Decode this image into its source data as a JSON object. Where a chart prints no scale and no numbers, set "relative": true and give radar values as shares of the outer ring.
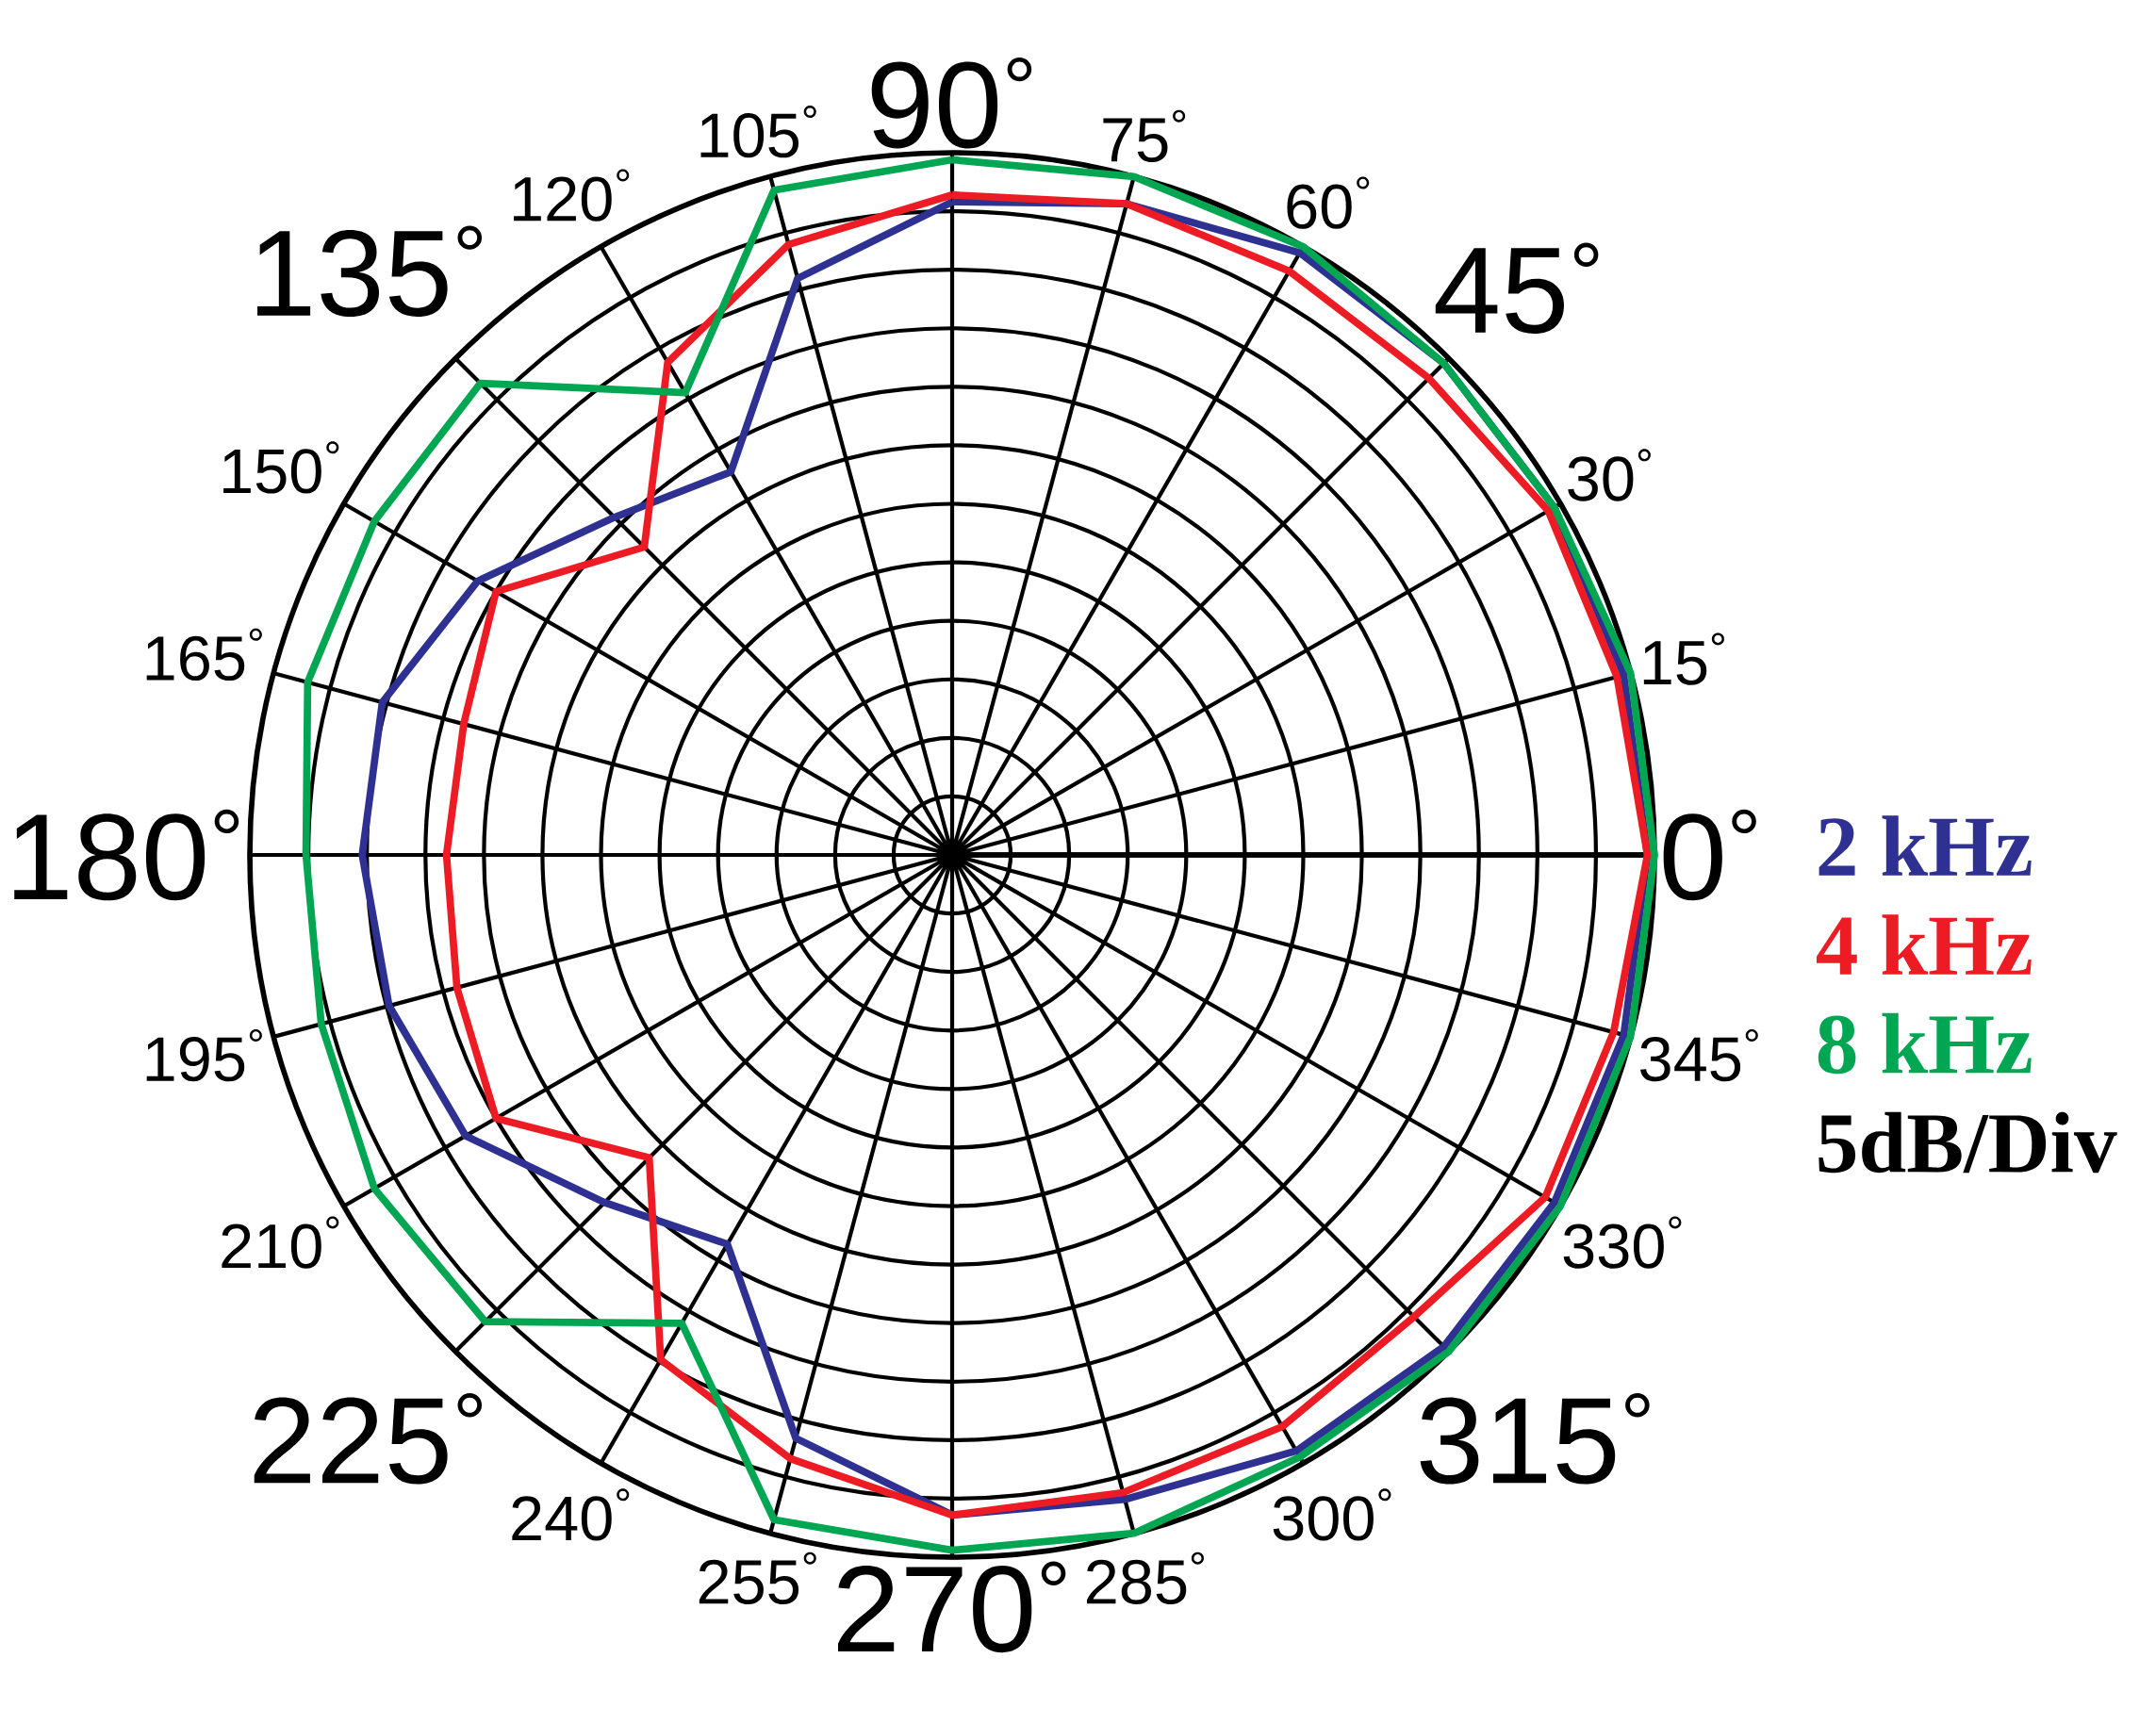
{
  "chart_data": {
    "type": "radar",
    "relative": true,
    "grid": true,
    "legend": "right",
    "categories": [
      "90$^{°}$",
      "75$^{°}$",
      "60$^{°}$",
      "45$^{°}$",
      "30$^{°}$",
      "15$^{°}$",
      "0$^{°}$",
      "345$^{°}$",
      "330$^{°}$",
      "315$^{°}$",
      "300$^{°}$",
      "285$^{°}$",
      "270$^{°}$",
      "255$^{°}$",
      "240$^{°}$",
      "225$^{°}$",
      "210$^{°}$",
      "195$^{°}$",
      "180$^{°}$",
      "165$^{°}$",
      "150$^{°}$",
      "135$^{°}$",
      "120$^{°}$",
      "105$^{°}$"
    ],
    "series": [
      {
        "name": "2 kHz",
        "color": "#2e3192",
        "values": [
          0.93,
          0.96,
          0.99,
          0.99,
          0.99,
          0.99,
          0.99,
          0.99,
          0.99,
          0.99,
          0.98,
          0.95,
          0.94,
          0.86,
          0.64,
          0.7,
          0.8,
          0.83,
          0.84,
          0.84,
          0.78,
          0.68,
          0.63,
          0.85
        ]
      },
      {
        "name": "4 kHz",
        "color": "#ed1c24",
        "values": [
          0.94,
          0.96,
          0.96,
          0.96,
          0.98,
          0.98,
          0.99,
          0.975,
          0.975,
          0.93,
          0.94,
          0.94,
          0.94,
          0.89,
          0.83,
          0.61,
          0.75,
          0.73,
          0.72,
          0.72,
          0.75,
          0.62,
          0.81,
          0.9
        ]
      },
      {
        "name": "8 kHz",
        "color": "#00a651",
        "values": [
          0.99,
          1.0,
          1.0,
          0.99,
          0.99,
          1.0,
          1.0,
          1.0,
          1.0,
          1.0,
          0.99,
          1.0,
          0.99,
          0.98,
          0.77,
          0.94,
          0.95,
          0.93,
          0.92,
          0.95,
          0.95,
          0.95,
          0.76,
          0.98
        ]
      }
    ],
    "annotations": [
      "5dB/Div"
    ]
  }
}
